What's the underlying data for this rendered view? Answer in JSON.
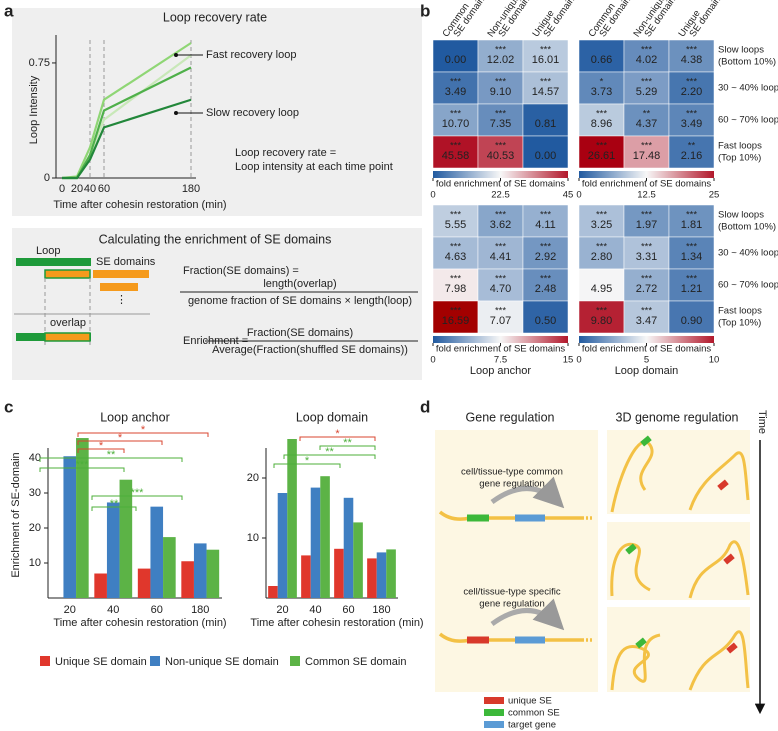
{
  "panel_labels": [
    "a",
    "b",
    "c",
    "d"
  ],
  "recovery": {
    "title": "Loop recovery rate",
    "ylabel": "Loop Intensity",
    "xlabel": "Time after cohesin restoration (min)",
    "categories": [
      "0",
      "20",
      "40",
      "60",
      "180"
    ],
    "ylim": [
      0,
      0.88
    ],
    "yticks": [
      0,
      0.75
    ],
    "lines": [
      {
        "color": "#c8e8b8",
        "values": [
          0,
          0,
          0.15,
          0.38,
          0.8
        ]
      },
      {
        "color": "#8fd675",
        "values": [
          0,
          0.01,
          0.2,
          0.51,
          0.88
        ]
      },
      {
        "color": "#4fb04a",
        "values": [
          0,
          0,
          0.15,
          0.44,
          0.72
        ]
      },
      {
        "color": "#22873a",
        "values": [
          0,
          0,
          0.12,
          0.33,
          0.51
        ]
      }
    ],
    "annotations": [
      "Fast recovery loop",
      "Slow recovery loop"
    ],
    "formula": [
      "Loop recovery rate =",
      "Loop intensity at each time point"
    ]
  },
  "enrichment_calc": {
    "title": "Calculating the enrichment of SE domains",
    "loop": "Loop",
    "se_domains": "SE domains",
    "ellipsis": "⋮",
    "overlap": "overlap",
    "fraction_lhs": "Fraction(SE domains) =",
    "fraction_num": "length(overlap)",
    "fraction_den": "genome fraction of SE domains × length(loop)",
    "enrichment_lhs": "Enrichment =",
    "enrichment_num": "Fraction(SE domains)",
    "enrichment_den": "Average(Fraction(shuffled SE domains))"
  },
  "heatmaps": {
    "columns": [
      [
        "Common",
        "SE domain"
      ],
      [
        "Non-unique",
        "SE domain"
      ],
      [
        "Unique",
        "SE domain"
      ]
    ],
    "rows": [
      [
        "Slow loops",
        "(Bottom 10%)"
      ],
      [
        "30 ~ 40% loops"
      ],
      [
        "60 ~ 70% loops"
      ],
      [
        "Fast loops",
        "(Top 10%)"
      ]
    ],
    "colorbar_label": "fold enrichment of SE domains",
    "group_labels": [
      "Loop anchor",
      "Loop domain"
    ],
    "maps": [
      {
        "values": [
          [
            0,
            12.02,
            16.01
          ],
          [
            3.49,
            9.1,
            14.57
          ],
          [
            10.7,
            7.35,
            0.81
          ],
          [
            45.58,
            40.53,
            0
          ]
        ],
        "value_labels": [
          [
            "0.00",
            "12.02",
            "16.01"
          ],
          [
            "3.49",
            "9.10",
            "14.57"
          ],
          [
            "10.70",
            "7.35",
            "0.81"
          ],
          [
            "45.58",
            "40.53",
            "0.00"
          ]
        ],
        "stars": [
          [
            null,
            "***",
            "***"
          ],
          [
            "***",
            "***",
            "***"
          ],
          [
            "***",
            "***",
            null
          ],
          [
            "***",
            "***",
            null
          ]
        ],
        "clim": [
          0,
          45
        ],
        "cticks": [
          0,
          22.5,
          45
        ]
      },
      {
        "values": [
          [
            0.66,
            4.02,
            4.38
          ],
          [
            3.73,
            5.29,
            2.2
          ],
          [
            8.96,
            4.37,
            3.49
          ],
          [
            26.61,
            17.48,
            2.16
          ]
        ],
        "value_labels": [
          [
            "0.66",
            "4.02",
            "4.38"
          ],
          [
            "3.73",
            "5.29",
            "2.20"
          ],
          [
            "8.96",
            "4.37",
            "3.49"
          ],
          [
            "26.61",
            "17.48",
            "2.16"
          ]
        ],
        "stars": [
          [
            null,
            "***",
            "***"
          ],
          [
            "*",
            "***",
            "***"
          ],
          [
            "***",
            "**",
            "***"
          ],
          [
            "***",
            "***",
            "**"
          ]
        ],
        "clim": [
          0,
          25
        ],
        "cticks": [
          0,
          12.5,
          25
        ]
      },
      {
        "values": [
          [
            5.55,
            3.62,
            4.11
          ],
          [
            4.63,
            4.41,
            2.92
          ],
          [
            7.98,
            4.7,
            2.48
          ],
          [
            16.59,
            7.07,
            0.5
          ]
        ],
        "value_labels": [
          [
            "5.55",
            "3.62",
            "4.11"
          ],
          [
            "4.63",
            "4.41",
            "2.92"
          ],
          [
            "7.98",
            "4.70",
            "2.48"
          ],
          [
            "16.59",
            "7.07",
            "0.50"
          ]
        ],
        "stars": [
          [
            "***",
            "***",
            "***"
          ],
          [
            "***",
            "***",
            "***"
          ],
          [
            "***",
            "***",
            "***"
          ],
          [
            "***",
            "***",
            null
          ]
        ],
        "clim": [
          0,
          15
        ],
        "cticks": [
          0,
          7.5,
          15
        ]
      },
      {
        "values": [
          [
            3.25,
            1.97,
            1.81
          ],
          [
            2.8,
            3.31,
            1.34
          ],
          [
            4.95,
            2.72,
            1.21
          ],
          [
            9.8,
            3.47,
            0.9
          ]
        ],
        "value_labels": [
          [
            "3.25",
            "1.97",
            "1.81"
          ],
          [
            "2.80",
            "3.31",
            "1.34"
          ],
          [
            "4.95",
            "2.72",
            "1.21"
          ],
          [
            "9.80",
            "3.47",
            "0.90"
          ]
        ],
        "stars": [
          [
            "***",
            "***",
            "***"
          ],
          [
            "***",
            "***",
            "***"
          ],
          [
            null,
            "***",
            "***"
          ],
          [
            "***",
            "***",
            null
          ]
        ],
        "clim": [
          0,
          10
        ],
        "cticks": [
          0,
          5,
          10
        ]
      }
    ]
  },
  "bars": {
    "ylabel": "Enrichment of SE-domain",
    "xlabel": "Time after cohesin restoration (min)",
    "categories": [
      "20",
      "40",
      "60",
      "180"
    ],
    "series": [
      {
        "name": "Unique SE domain",
        "color": "#e0372c"
      },
      {
        "name": "Non-unique SE domain",
        "color": "#3f7fc2"
      },
      {
        "name": "Common SE domain",
        "color": "#5cb346"
      }
    ],
    "charts": [
      {
        "title": "Loop anchor",
        "ylim": [
          0,
          48
        ],
        "yticks": [
          10,
          20,
          30,
          40
        ],
        "values": [
          [
            null,
            7,
            8.4,
            10.5
          ],
          [
            40.5,
            27.3,
            26.1,
            15.6
          ],
          [
            45.7,
            33.8,
            17.4,
            13.8
          ]
        ],
        "significance": [
          {
            "label": "*",
            "color": "#d9442f"
          },
          {
            "label": "*",
            "color": "#d9442f"
          },
          {
            "label": "*",
            "color": "#d9442f"
          },
          {
            "label": "**",
            "color": "#4caf3a"
          },
          {
            "label": "***",
            "color": "#4caf3a"
          },
          {
            "label": "***",
            "color": "#4caf3a"
          },
          {
            "label": "**",
            "color": "#4caf3a"
          }
        ]
      },
      {
        "title": "Loop domain",
        "ylim": [
          0,
          28
        ],
        "yticks": [
          10,
          20
        ],
        "values": [
          [
            2,
            7.1,
            8.2,
            6.6
          ],
          [
            17.5,
            18.4,
            16.7,
            7.6
          ],
          [
            26.5,
            20.3,
            12.6,
            8.1
          ]
        ],
        "significance": [
          {
            "label": "*",
            "color": "#d9442f"
          },
          {
            "label": "**",
            "color": "#4caf3a"
          },
          {
            "label": "**",
            "color": "#4caf3a"
          },
          {
            "label": "*",
            "color": "#4caf3a"
          }
        ]
      }
    ]
  },
  "regulation": {
    "titles": [
      "Gene regulation",
      "3D genome regulation"
    ],
    "time": "Time",
    "common": [
      "cell/tissue-type common",
      "gene regulation"
    ],
    "specific": [
      "cell/tissue-type specific",
      "gene regulation"
    ],
    "legend": [
      {
        "label": "unique SE",
        "color": "#d8392b"
      },
      {
        "label": "common SE",
        "color": "#3cb83a"
      },
      {
        "label": "target gene",
        "color": "#5b9bd5"
      }
    ]
  }
}
